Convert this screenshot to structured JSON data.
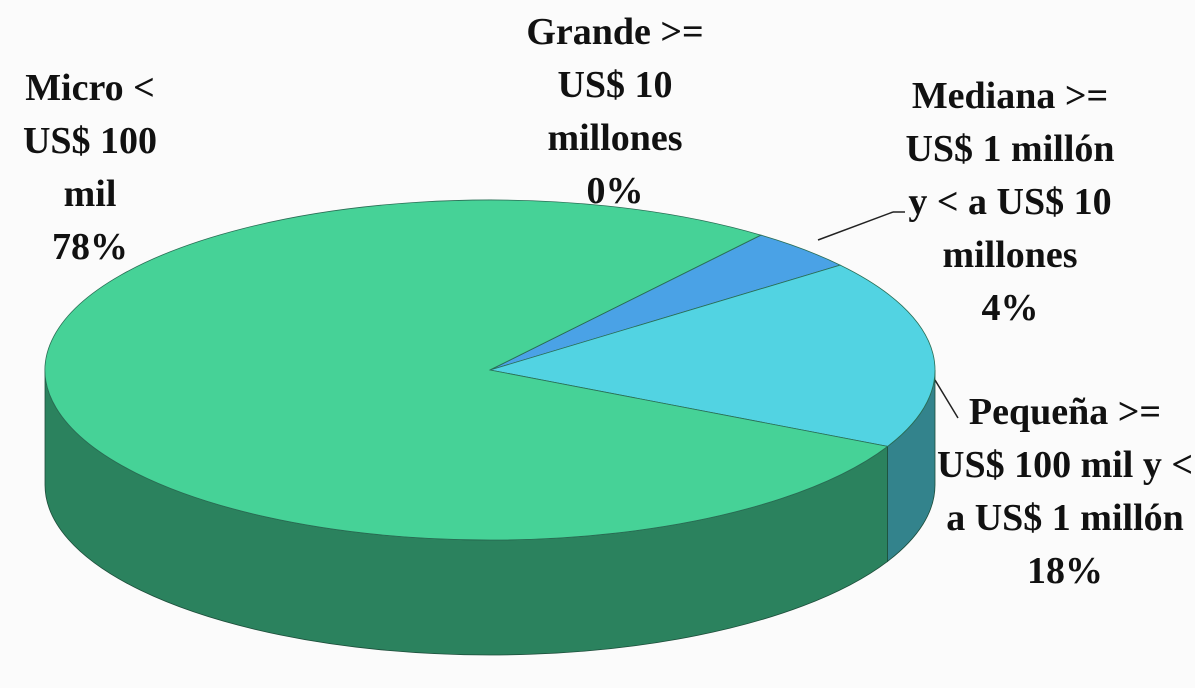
{
  "chart_data": {
    "type": "pie3d",
    "categories": [
      "Micro < US$ 100 mil",
      "Pequeña >= US$ 100 mil y < a US$ 1 millón",
      "Mediana >= US$ 1 millón y < a US$ 10 millones",
      "Grande >= US$ 10 millones"
    ],
    "values": [
      78,
      18,
      4,
      0
    ],
    "value_labels": [
      "78%",
      "18%",
      "4%",
      "0%"
    ],
    "colors": [
      "#46d297",
      "#52d3e2",
      "#4aa2e6",
      "#2f73c8"
    ]
  }
}
